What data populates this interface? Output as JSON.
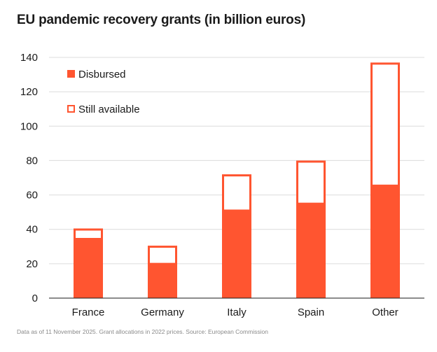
{
  "title": "EU pandemic recovery grants (in billion euros)",
  "note": "Data as of 11 November 2025. Grant allocations in 2022 prices. Source: European Commission",
  "colors": {
    "accent": "#ff5530",
    "grid": "#dcdcdc",
    "axis": "#1a1a1a"
  },
  "chart_data": {
    "type": "bar",
    "stacked": true,
    "title": "EU pandemic recovery grants (in billion euros)",
    "xlabel": "",
    "ylabel": "",
    "ylim": [
      0,
      140
    ],
    "yticks": [
      0,
      20,
      40,
      60,
      80,
      100,
      120,
      140
    ],
    "grid": true,
    "legend_position": "top-left",
    "categories": [
      "France",
      "Germany",
      "Italy",
      "Spain",
      "Other"
    ],
    "series": [
      {
        "name": "Disbursed",
        "style": "filled",
        "values": [
          35,
          20.5,
          51.5,
          55.5,
          66
        ]
      },
      {
        "name": "Still available",
        "style": "outline",
        "values": [
          5.5,
          10,
          20.5,
          24.5,
          71
        ]
      }
    ]
  }
}
